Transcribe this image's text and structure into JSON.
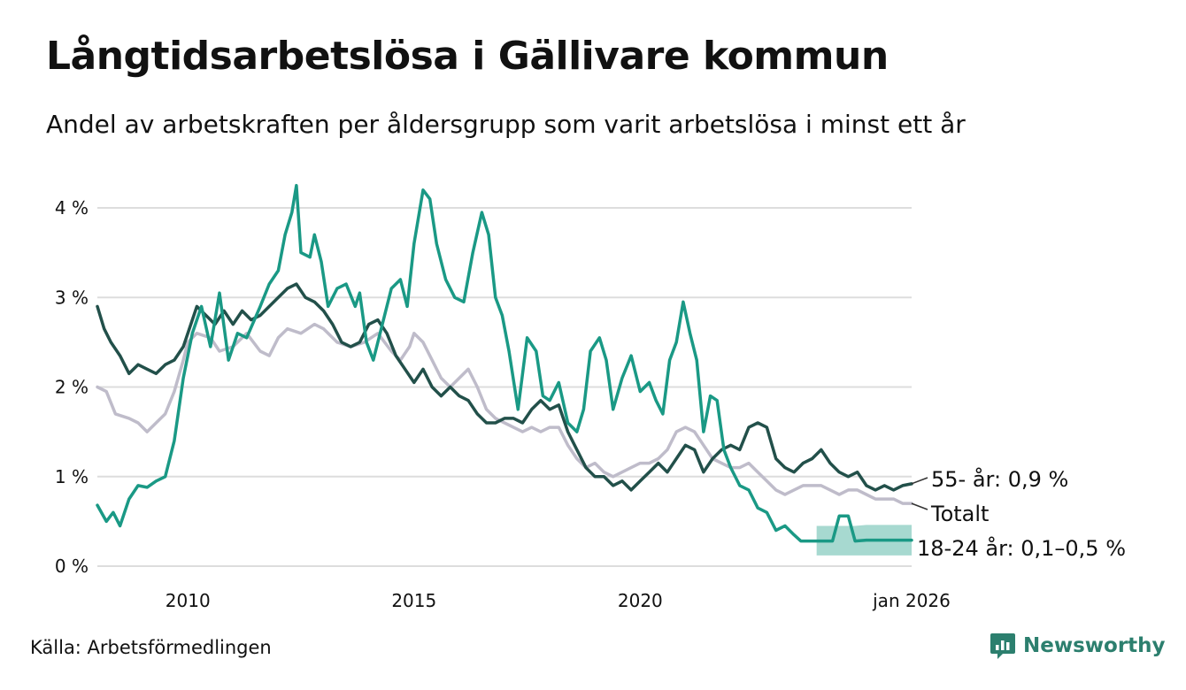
{
  "title": "Långtidsarbetslösa i Gällivare kommun",
  "subtitle": "Andel av arbetskraften per åldersgrupp som varit arbetslösa i minst ett år",
  "source": "Källa: Arbetsförmedlingen",
  "brand": "Newsworthy",
  "colors": {
    "young": "#1a9985",
    "older": "#22504a",
    "total": "#bfbcca",
    "band": "#a7d9d0",
    "grid": "#dddddd"
  },
  "chart_data": {
    "type": "line",
    "x_range": [
      2008.0,
      2026.0
    ],
    "y_range": [
      0,
      4.4
    ],
    "y_ticks": [
      {
        "value": 0,
        "label": "0 %"
      },
      {
        "value": 1,
        "label": "1 %"
      },
      {
        "value": 2,
        "label": "2 %"
      },
      {
        "value": 3,
        "label": "3 %"
      },
      {
        "value": 4,
        "label": "4 %"
      }
    ],
    "x_ticks": [
      {
        "value": 2010,
        "label": "2010"
      },
      {
        "value": 2015,
        "label": "2015"
      },
      {
        "value": 2020,
        "label": "2020"
      },
      {
        "value": 2026.0,
        "label": "jan 2026"
      }
    ],
    "series": [
      {
        "name": "Totalt",
        "key": "total",
        "label": "Totalt",
        "points": [
          [
            2008.0,
            2.0
          ],
          [
            2008.2,
            1.95
          ],
          [
            2008.4,
            1.7
          ],
          [
            2008.7,
            1.65
          ],
          [
            2008.9,
            1.6
          ],
          [
            2009.1,
            1.5
          ],
          [
            2009.3,
            1.6
          ],
          [
            2009.5,
            1.7
          ],
          [
            2009.7,
            1.95
          ],
          [
            2009.9,
            2.3
          ],
          [
            2010.0,
            2.5
          ],
          [
            2010.2,
            2.6
          ],
          [
            2010.5,
            2.55
          ],
          [
            2010.7,
            2.4
          ],
          [
            2011.0,
            2.45
          ],
          [
            2011.3,
            2.6
          ],
          [
            2011.6,
            2.4
          ],
          [
            2011.8,
            2.35
          ],
          [
            2012.0,
            2.55
          ],
          [
            2012.2,
            2.65
          ],
          [
            2012.5,
            2.6
          ],
          [
            2012.8,
            2.7
          ],
          [
            2013.0,
            2.65
          ],
          [
            2013.3,
            2.5
          ],
          [
            2013.6,
            2.45
          ],
          [
            2013.9,
            2.5
          ],
          [
            2014.2,
            2.6
          ],
          [
            2014.5,
            2.4
          ],
          [
            2014.7,
            2.3
          ],
          [
            2014.9,
            2.45
          ],
          [
            2015.0,
            2.6
          ],
          [
            2015.2,
            2.5
          ],
          [
            2015.4,
            2.3
          ],
          [
            2015.6,
            2.1
          ],
          [
            2015.8,
            2.0
          ],
          [
            2016.0,
            2.1
          ],
          [
            2016.2,
            2.2
          ],
          [
            2016.4,
            2.0
          ],
          [
            2016.6,
            1.75
          ],
          [
            2016.8,
            1.65
          ],
          [
            2017.0,
            1.6
          ],
          [
            2017.2,
            1.55
          ],
          [
            2017.4,
            1.5
          ],
          [
            2017.6,
            1.55
          ],
          [
            2017.8,
            1.5
          ],
          [
            2018.0,
            1.55
          ],
          [
            2018.2,
            1.55
          ],
          [
            2018.4,
            1.35
          ],
          [
            2018.6,
            1.2
          ],
          [
            2018.8,
            1.1
          ],
          [
            2019.0,
            1.15
          ],
          [
            2019.2,
            1.05
          ],
          [
            2019.4,
            1.0
          ],
          [
            2019.6,
            1.05
          ],
          [
            2019.8,
            1.1
          ],
          [
            2020.0,
            1.15
          ],
          [
            2020.2,
            1.15
          ],
          [
            2020.4,
            1.2
          ],
          [
            2020.6,
            1.3
          ],
          [
            2020.8,
            1.5
          ],
          [
            2021.0,
            1.55
          ],
          [
            2021.2,
            1.5
          ],
          [
            2021.4,
            1.35
          ],
          [
            2021.6,
            1.2
          ],
          [
            2021.8,
            1.15
          ],
          [
            2022.0,
            1.1
          ],
          [
            2022.2,
            1.1
          ],
          [
            2022.4,
            1.15
          ],
          [
            2022.6,
            1.05
          ],
          [
            2022.8,
            0.95
          ],
          [
            2023.0,
            0.85
          ],
          [
            2023.2,
            0.8
          ],
          [
            2023.4,
            0.85
          ],
          [
            2023.6,
            0.9
          ],
          [
            2023.8,
            0.9
          ],
          [
            2024.0,
            0.9
          ],
          [
            2024.2,
            0.85
          ],
          [
            2024.4,
            0.8
          ],
          [
            2024.6,
            0.85
          ],
          [
            2024.8,
            0.85
          ],
          [
            2025.0,
            0.8
          ],
          [
            2025.2,
            0.75
          ],
          [
            2025.4,
            0.75
          ],
          [
            2025.6,
            0.75
          ],
          [
            2025.8,
            0.7
          ],
          [
            2026.0,
            0.7
          ]
        ]
      },
      {
        "name": "55- år",
        "key": "older",
        "label": "55- år: 0,9 %",
        "points": [
          [
            2008.0,
            2.9
          ],
          [
            2008.15,
            2.65
          ],
          [
            2008.3,
            2.5
          ],
          [
            2008.5,
            2.35
          ],
          [
            2008.7,
            2.15
          ],
          [
            2008.9,
            2.25
          ],
          [
            2009.1,
            2.2
          ],
          [
            2009.3,
            2.15
          ],
          [
            2009.5,
            2.25
          ],
          [
            2009.7,
            2.3
          ],
          [
            2009.9,
            2.45
          ],
          [
            2010.0,
            2.6
          ],
          [
            2010.2,
            2.9
          ],
          [
            2010.4,
            2.8
          ],
          [
            2010.6,
            2.7
          ],
          [
            2010.8,
            2.85
          ],
          [
            2011.0,
            2.7
          ],
          [
            2011.2,
            2.85
          ],
          [
            2011.4,
            2.75
          ],
          [
            2011.6,
            2.8
          ],
          [
            2011.8,
            2.9
          ],
          [
            2012.0,
            3.0
          ],
          [
            2012.2,
            3.1
          ],
          [
            2012.4,
            3.15
          ],
          [
            2012.6,
            3.0
          ],
          [
            2012.8,
            2.95
          ],
          [
            2013.0,
            2.85
          ],
          [
            2013.2,
            2.7
          ],
          [
            2013.4,
            2.5
          ],
          [
            2013.6,
            2.45
          ],
          [
            2013.8,
            2.5
          ],
          [
            2014.0,
            2.7
          ],
          [
            2014.2,
            2.75
          ],
          [
            2014.4,
            2.6
          ],
          [
            2014.6,
            2.35
          ],
          [
            2014.8,
            2.2
          ],
          [
            2015.0,
            2.05
          ],
          [
            2015.2,
            2.2
          ],
          [
            2015.4,
            2.0
          ],
          [
            2015.6,
            1.9
          ],
          [
            2015.8,
            2.0
          ],
          [
            2016.0,
            1.9
          ],
          [
            2016.2,
            1.85
          ],
          [
            2016.4,
            1.7
          ],
          [
            2016.6,
            1.6
          ],
          [
            2016.8,
            1.6
          ],
          [
            2017.0,
            1.65
          ],
          [
            2017.2,
            1.65
          ],
          [
            2017.4,
            1.6
          ],
          [
            2017.6,
            1.75
          ],
          [
            2017.8,
            1.85
          ],
          [
            2018.0,
            1.75
          ],
          [
            2018.2,
            1.8
          ],
          [
            2018.4,
            1.5
          ],
          [
            2018.6,
            1.3
          ],
          [
            2018.8,
            1.1
          ],
          [
            2019.0,
            1.0
          ],
          [
            2019.2,
            1.0
          ],
          [
            2019.4,
            0.9
          ],
          [
            2019.6,
            0.95
          ],
          [
            2019.8,
            0.85
          ],
          [
            2020.0,
            0.95
          ],
          [
            2020.2,
            1.05
          ],
          [
            2020.4,
            1.15
          ],
          [
            2020.6,
            1.05
          ],
          [
            2020.8,
            1.2
          ],
          [
            2021.0,
            1.35
          ],
          [
            2021.2,
            1.3
          ],
          [
            2021.4,
            1.05
          ],
          [
            2021.6,
            1.2
          ],
          [
            2021.8,
            1.3
          ],
          [
            2022.0,
            1.35
          ],
          [
            2022.2,
            1.3
          ],
          [
            2022.4,
            1.55
          ],
          [
            2022.6,
            1.6
          ],
          [
            2022.8,
            1.55
          ],
          [
            2023.0,
            1.2
          ],
          [
            2023.2,
            1.1
          ],
          [
            2023.4,
            1.05
          ],
          [
            2023.6,
            1.15
          ],
          [
            2023.8,
            1.2
          ],
          [
            2024.0,
            1.3
          ],
          [
            2024.2,
            1.15
          ],
          [
            2024.4,
            1.05
          ],
          [
            2024.6,
            1.0
          ],
          [
            2024.8,
            1.05
          ],
          [
            2025.0,
            0.9
          ],
          [
            2025.2,
            0.85
          ],
          [
            2025.4,
            0.9
          ],
          [
            2025.6,
            0.85
          ],
          [
            2025.8,
            0.9
          ],
          [
            2026.0,
            0.92
          ]
        ]
      },
      {
        "name": "18-24 år",
        "key": "young",
        "label": "18-24 år: 0,1–0,5 %",
        "points": [
          [
            2008.0,
            0.68
          ],
          [
            2008.2,
            0.5
          ],
          [
            2008.35,
            0.6
          ],
          [
            2008.5,
            0.45
          ],
          [
            2008.7,
            0.75
          ],
          [
            2008.9,
            0.9
          ],
          [
            2009.1,
            0.88
          ],
          [
            2009.3,
            0.95
          ],
          [
            2009.5,
            1.0
          ],
          [
            2009.7,
            1.4
          ],
          [
            2009.9,
            2.1
          ],
          [
            2010.1,
            2.6
          ],
          [
            2010.3,
            2.9
          ],
          [
            2010.5,
            2.45
          ],
          [
            2010.7,
            3.05
          ],
          [
            2010.9,
            2.3
          ],
          [
            2011.1,
            2.6
          ],
          [
            2011.3,
            2.55
          ],
          [
            2011.6,
            2.9
          ],
          [
            2011.8,
            3.15
          ],
          [
            2012.0,
            3.3
          ],
          [
            2012.15,
            3.7
          ],
          [
            2012.3,
            3.95
          ],
          [
            2012.4,
            4.25
          ],
          [
            2012.5,
            3.5
          ],
          [
            2012.7,
            3.45
          ],
          [
            2012.8,
            3.7
          ],
          [
            2012.95,
            3.4
          ],
          [
            2013.1,
            2.9
          ],
          [
            2013.3,
            3.1
          ],
          [
            2013.5,
            3.15
          ],
          [
            2013.7,
            2.9
          ],
          [
            2013.8,
            3.05
          ],
          [
            2013.95,
            2.5
          ],
          [
            2014.1,
            2.3
          ],
          [
            2014.3,
            2.7
          ],
          [
            2014.5,
            3.1
          ],
          [
            2014.7,
            3.2
          ],
          [
            2014.85,
            2.9
          ],
          [
            2015.0,
            3.6
          ],
          [
            2015.2,
            4.2
          ],
          [
            2015.35,
            4.1
          ],
          [
            2015.5,
            3.6
          ],
          [
            2015.7,
            3.2
          ],
          [
            2015.9,
            3.0
          ],
          [
            2016.1,
            2.95
          ],
          [
            2016.3,
            3.5
          ],
          [
            2016.5,
            3.95
          ],
          [
            2016.65,
            3.7
          ],
          [
            2016.8,
            3.0
          ],
          [
            2016.95,
            2.8
          ],
          [
            2017.1,
            2.4
          ],
          [
            2017.3,
            1.75
          ],
          [
            2017.5,
            2.55
          ],
          [
            2017.7,
            2.4
          ],
          [
            2017.85,
            1.9
          ],
          [
            2018.0,
            1.85
          ],
          [
            2018.2,
            2.05
          ],
          [
            2018.4,
            1.6
          ],
          [
            2018.6,
            1.5
          ],
          [
            2018.75,
            1.75
          ],
          [
            2018.9,
            2.4
          ],
          [
            2019.1,
            2.55
          ],
          [
            2019.25,
            2.3
          ],
          [
            2019.4,
            1.75
          ],
          [
            2019.6,
            2.1
          ],
          [
            2019.8,
            2.35
          ],
          [
            2020.0,
            1.95
          ],
          [
            2020.2,
            2.05
          ],
          [
            2020.35,
            1.85
          ],
          [
            2020.5,
            1.7
          ],
          [
            2020.65,
            2.3
          ],
          [
            2020.8,
            2.5
          ],
          [
            2020.95,
            2.95
          ],
          [
            2021.1,
            2.6
          ],
          [
            2021.25,
            2.3
          ],
          [
            2021.4,
            1.5
          ],
          [
            2021.55,
            1.9
          ],
          [
            2021.7,
            1.85
          ],
          [
            2021.85,
            1.3
          ],
          [
            2022.0,
            1.1
          ],
          [
            2022.2,
            0.9
          ],
          [
            2022.4,
            0.85
          ],
          [
            2022.6,
            0.65
          ],
          [
            2022.8,
            0.6
          ],
          [
            2023.0,
            0.4
          ],
          [
            2023.2,
            0.45
          ],
          [
            2023.4,
            0.35
          ],
          [
            2023.55,
            0.28
          ],
          [
            2023.8,
            0.28
          ],
          [
            2024.0,
            0.28
          ],
          [
            2024.25,
            0.28
          ],
          [
            2024.4,
            0.56
          ],
          [
            2024.6,
            0.56
          ],
          [
            2024.75,
            0.28
          ],
          [
            2025.0,
            0.29
          ],
          [
            2025.3,
            0.29
          ],
          [
            2025.6,
            0.29
          ],
          [
            2026.0,
            0.29
          ]
        ]
      }
    ],
    "bands": [
      {
        "series": "18-24 år",
        "points": [
          [
            2023.9,
            0.12,
            0.45
          ],
          [
            2024.15,
            0.12,
            0.45
          ],
          [
            2024.3,
            0.12,
            0.45
          ],
          [
            2024.75,
            0.12,
            0.45
          ],
          [
            2025.0,
            0.12,
            0.46
          ],
          [
            2026.0,
            0.12,
            0.46
          ]
        ]
      }
    ]
  }
}
